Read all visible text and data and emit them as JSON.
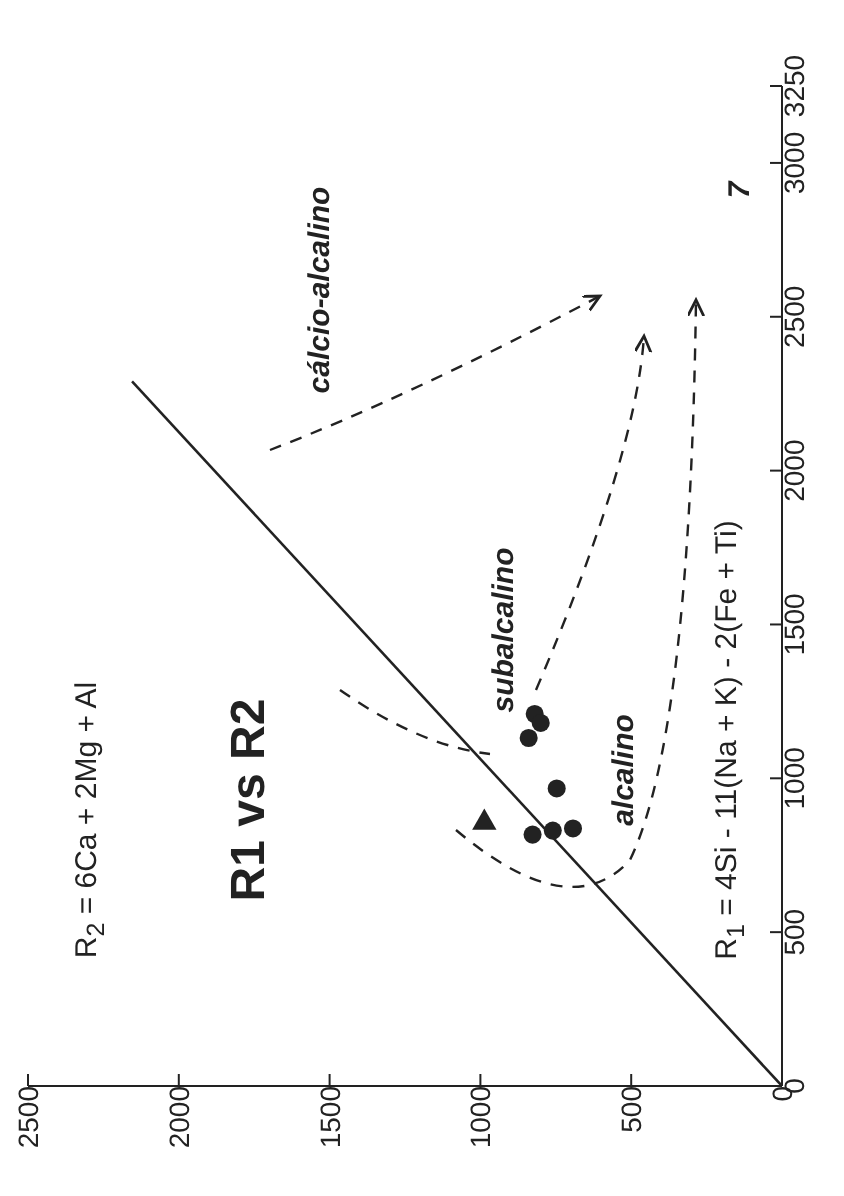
{
  "chart_data": {
    "type": "scatter",
    "title": "R1 vs R2",
    "xlim": [
      2500,
      0
    ],
    "ylim": [
      0,
      3250
    ],
    "xticks": [
      2500,
      2000,
      1500,
      1000,
      500,
      0
    ],
    "yticks": [
      0,
      500,
      1000,
      1500,
      2000,
      2500,
      3000,
      3250
    ],
    "series": [
      {
        "type": "line",
        "color": "#222222",
        "x": [
          0,
          2155
        ],
        "values": [
          0,
          2290
        ],
        "line_style": "solid",
        "marker": "none"
      },
      {
        "color": "#222222",
        "marker": "circle",
        "x": [
          747,
          827,
          760,
          693,
          820,
          840,
          800
        ],
        "values": [
          967,
          817,
          830,
          837,
          1209,
          1131,
          1180
        ]
      },
      {
        "color": "#222222",
        "marker": "triangle",
        "x": [
          987
        ],
        "values": [
          856
        ]
      }
    ],
    "annotations": [
      "cálcio-alcalino",
      "subalcalino",
      "alcalino",
      "7",
      "R$_{2}$ = 6Ca + 2Mg + Al",
      "R$_{1}$ = 4Si - 11(Na + K) - 2(Fe + Ti)"
    ]
  }
}
